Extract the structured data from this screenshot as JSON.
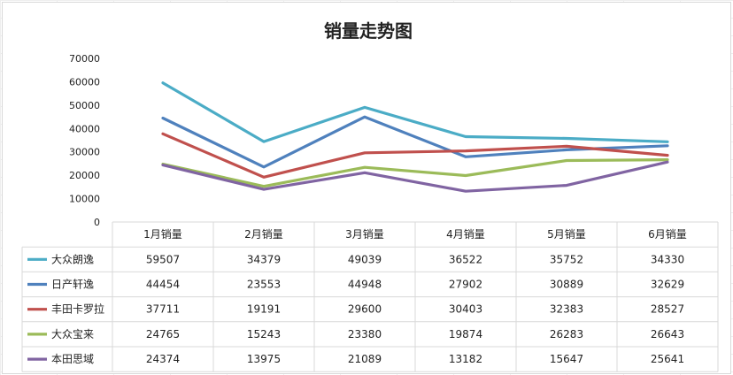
{
  "chart_data": {
    "type": "line",
    "title": "销量走势图",
    "categories": [
      "1月销量",
      "2月销量",
      "3月销量",
      "4月销量",
      "5月销量",
      "6月销量"
    ],
    "ylim": [
      0,
      70000
    ],
    "yticks": [
      "0",
      "10000",
      "20000",
      "30000",
      "40000",
      "50000",
      "60000",
      "70000"
    ],
    "grid": false,
    "legend": "data-table-left",
    "series": [
      {
        "name": "大众朗逸",
        "color": "#4bacc6",
        "values": [
          59507,
          34379,
          49039,
          36522,
          35752,
          34330
        ]
      },
      {
        "name": "日产轩逸",
        "color": "#4f81bd",
        "values": [
          44454,
          23553,
          44948,
          27902,
          30889,
          32629
        ]
      },
      {
        "name": "丰田卡罗拉",
        "color": "#c0504d",
        "values": [
          37711,
          19191,
          29600,
          30403,
          32383,
          28527
        ]
      },
      {
        "name": "大众宝来",
        "color": "#9bbb59",
        "values": [
          24765,
          15243,
          23380,
          19874,
          26283,
          26643
        ]
      },
      {
        "name": "本田思域",
        "color": "#8064a2",
        "values": [
          24374,
          13975,
          21089,
          13182,
          15647,
          25641
        ]
      }
    ]
  }
}
